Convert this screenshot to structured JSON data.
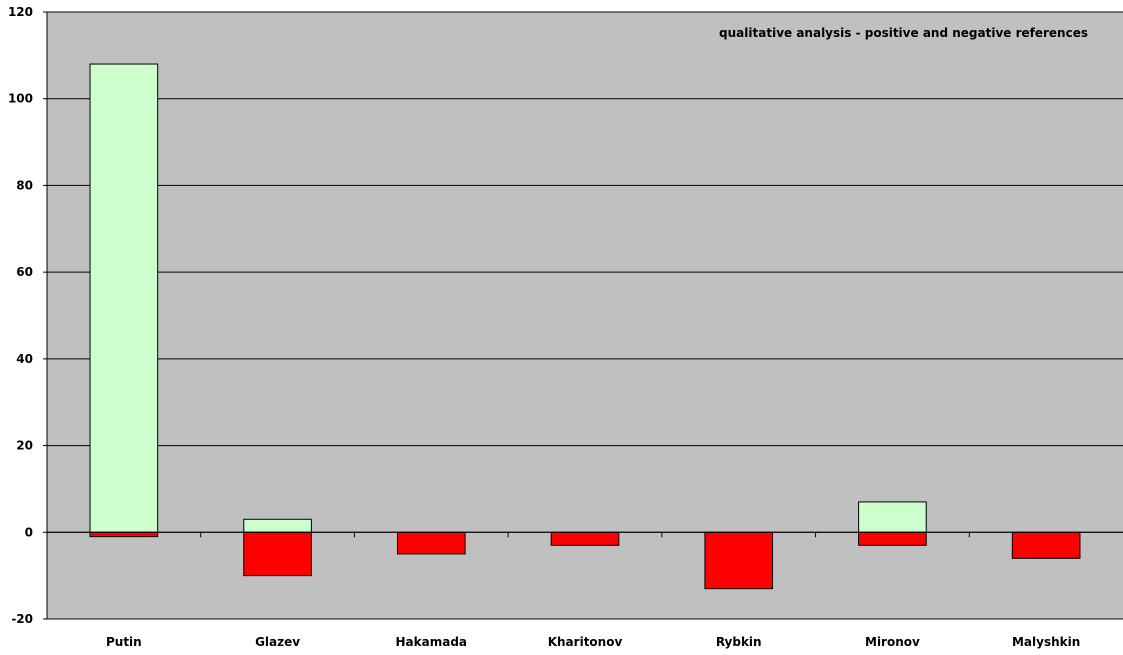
{
  "chart_data": {
    "type": "bar",
    "title": "qualitative analysis - positive and negative references",
    "xlabel": "",
    "ylabel": "",
    "categories": [
      "Putin",
      "Glazev",
      "Hakamada",
      "Kharitonov",
      "Rybkin",
      "Mironov",
      "Malyshkin"
    ],
    "series": [
      {
        "values": [
          108,
          3,
          0,
          0,
          0,
          7,
          0
        ],
        "color": "#ccffcc"
      },
      {
        "values": [
          -1,
          -10,
          -5,
          -3,
          -13,
          -3,
          -6
        ],
        "color": "#ff0000"
      }
    ],
    "ylim": [
      -20,
      120
    ],
    "yticks": [
      "-20",
      "0",
      "20",
      "40",
      "60",
      "80",
      "100",
      "120"
    ],
    "grid": true,
    "legend": "none",
    "plot_background": "#c0c0c0",
    "gridline_color": "#000000"
  }
}
